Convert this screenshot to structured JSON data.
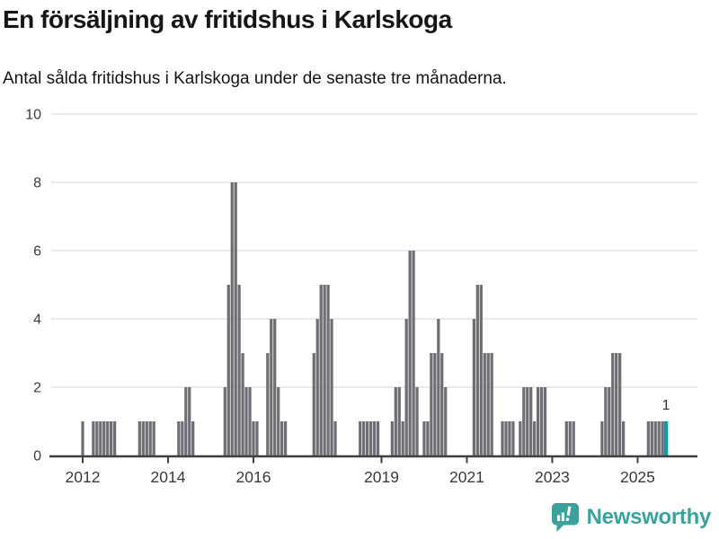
{
  "header": {
    "title": "En försäljning av fritidshus i Karlskoga",
    "subtitle": "Antal sålda fritidshus i Karlskoga under de senaste tre månaderna."
  },
  "chart_data": {
    "type": "bar",
    "title": "En försäljning av fritidshus i Karlskoga",
    "subtitle": "Antal sålda fritidshus i Karlskoga under de senaste tre månaderna.",
    "unit": "antal sålda fritidshus per 3-månadersperiod",
    "ylim": [
      0,
      10
    ],
    "y_ticks": [
      0,
      2,
      4,
      6,
      8,
      10
    ],
    "x_tick_years": [
      2012,
      2014,
      2016,
      2019,
      2021,
      2023,
      2025
    ],
    "grid": true,
    "points": [
      [
        "2012-01",
        1
      ],
      [
        "2012-04",
        1
      ],
      [
        "2012-05",
        1
      ],
      [
        "2012-06",
        1
      ],
      [
        "2012-07",
        1
      ],
      [
        "2012-08",
        1
      ],
      [
        "2012-09",
        1
      ],
      [
        "2012-10",
        1
      ],
      [
        "2013-05",
        1
      ],
      [
        "2013-06",
        1
      ],
      [
        "2013-07",
        1
      ],
      [
        "2013-08",
        1
      ],
      [
        "2013-09",
        1
      ],
      [
        "2014-04",
        1
      ],
      [
        "2014-05",
        1
      ],
      [
        "2014-06",
        2
      ],
      [
        "2014-07",
        2
      ],
      [
        "2014-08",
        1
      ],
      [
        "2015-05",
        2
      ],
      [
        "2015-06",
        5
      ],
      [
        "2015-07",
        8
      ],
      [
        "2015-08",
        8
      ],
      [
        "2015-09",
        5
      ],
      [
        "2015-10",
        3
      ],
      [
        "2015-11",
        2
      ],
      [
        "2015-12",
        2
      ],
      [
        "2016-01",
        1
      ],
      [
        "2016-02",
        1
      ],
      [
        "2016-05",
        3
      ],
      [
        "2016-06",
        4
      ],
      [
        "2016-07",
        4
      ],
      [
        "2016-08",
        2
      ],
      [
        "2016-09",
        1
      ],
      [
        "2016-10",
        1
      ],
      [
        "2017-06",
        3
      ],
      [
        "2017-07",
        4
      ],
      [
        "2017-08",
        5
      ],
      [
        "2017-09",
        5
      ],
      [
        "2017-10",
        5
      ],
      [
        "2017-11",
        4
      ],
      [
        "2017-12",
        1
      ],
      [
        "2018-07",
        1
      ],
      [
        "2018-08",
        1
      ],
      [
        "2018-09",
        1
      ],
      [
        "2018-10",
        1
      ],
      [
        "2018-11",
        1
      ],
      [
        "2018-12",
        1
      ],
      [
        "2019-04",
        1
      ],
      [
        "2019-05",
        2
      ],
      [
        "2019-06",
        2
      ],
      [
        "2019-07",
        1
      ],
      [
        "2019-08",
        4
      ],
      [
        "2019-09",
        6
      ],
      [
        "2019-10",
        6
      ],
      [
        "2019-11",
        2
      ],
      [
        "2020-01",
        1
      ],
      [
        "2020-02",
        1
      ],
      [
        "2020-03",
        3
      ],
      [
        "2020-04",
        3
      ],
      [
        "2020-05",
        4
      ],
      [
        "2020-06",
        3
      ],
      [
        "2020-07",
        2
      ],
      [
        "2021-03",
        4
      ],
      [
        "2021-04",
        5
      ],
      [
        "2021-05",
        5
      ],
      [
        "2021-06",
        3
      ],
      [
        "2021-07",
        3
      ],
      [
        "2021-08",
        3
      ],
      [
        "2021-11",
        1
      ],
      [
        "2021-12",
        1
      ],
      [
        "2022-01",
        1
      ],
      [
        "2022-02",
        1
      ],
      [
        "2022-04",
        1
      ],
      [
        "2022-05",
        2
      ],
      [
        "2022-06",
        2
      ],
      [
        "2022-07",
        2
      ],
      [
        "2022-08",
        1
      ],
      [
        "2022-09",
        2
      ],
      [
        "2022-10",
        2
      ],
      [
        "2022-11",
        2
      ],
      [
        "2023-05",
        1
      ],
      [
        "2023-06",
        1
      ],
      [
        "2023-07",
        1
      ],
      [
        "2024-03",
        1
      ],
      [
        "2024-04",
        2
      ],
      [
        "2024-05",
        2
      ],
      [
        "2024-06",
        3
      ],
      [
        "2024-07",
        3
      ],
      [
        "2024-08",
        3
      ],
      [
        "2024-09",
        1
      ],
      [
        "2025-04",
        1
      ],
      [
        "2025-05",
        1
      ],
      [
        "2025-06",
        1
      ],
      [
        "2025-07",
        1
      ],
      [
        "2025-08",
        1
      ],
      [
        "2025-09",
        1
      ]
    ],
    "highlight": {
      "date": "2025-09",
      "value": 1,
      "label": "1"
    },
    "colors": {
      "bar": "#6f6e74",
      "highlight": "#00a0a3",
      "grid": "#e4e4e4",
      "axis": "#3f3f42",
      "tick_label": "#3a3a3a",
      "value_label": "#2e2e2e"
    },
    "legend": null
  },
  "footer": {
    "brand": "Newsworthy",
    "brand_color": "#3aa39c"
  }
}
